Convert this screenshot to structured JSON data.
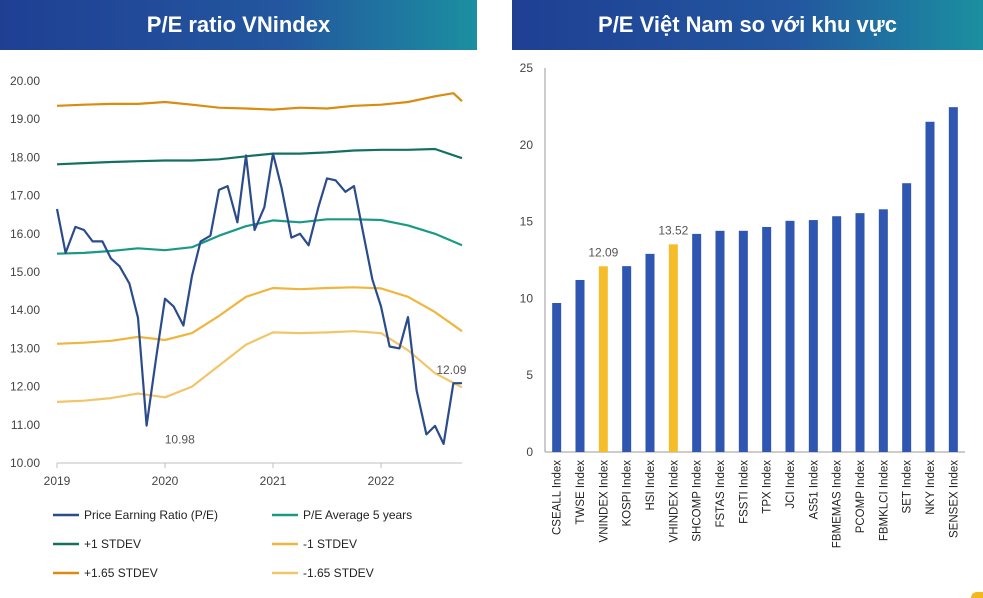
{
  "titles": {
    "left": "P/E ratio VNindex",
    "right": "P/E Việt Nam so với khu vực"
  },
  "chart_data": [
    {
      "type": "line",
      "title": "P/E ratio VNindex",
      "ylim": [
        10,
        20
      ],
      "yticks": [
        "10.00",
        "11.00",
        "12.00",
        "13.00",
        "14.00",
        "15.00",
        "16.00",
        "17.00",
        "18.00",
        "19.00",
        "20.00"
      ],
      "xlim": [
        2019,
        2022.75
      ],
      "xticks": [
        "2019",
        "2020",
        "2021",
        "2022"
      ],
      "grid": false,
      "legend_position": "bottom",
      "series": [
        {
          "name": "Price Earning Ratio (P/E)",
          "color": "#2b4c8c",
          "x": [
            2019.0,
            2019.08,
            2019.17,
            2019.25,
            2019.33,
            2019.42,
            2019.5,
            2019.58,
            2019.67,
            2019.75,
            2019.83,
            2019.92,
            2020.0,
            2020.08,
            2020.17,
            2020.25,
            2020.33,
            2020.42,
            2020.5,
            2020.58,
            2020.67,
            2020.75,
            2020.83,
            2020.92,
            2021.0,
            2021.08,
            2021.17,
            2021.25,
            2021.33,
            2021.42,
            2021.5,
            2021.58,
            2021.67,
            2021.75,
            2021.83,
            2021.92,
            2022.0,
            2022.08,
            2022.17,
            2022.25,
            2022.33,
            2022.42,
            2022.5,
            2022.58,
            2022.67,
            2022.75
          ],
          "y": [
            16.65,
            15.5,
            16.18,
            16.1,
            15.8,
            15.8,
            15.35,
            15.15,
            14.7,
            13.8,
            10.98,
            12.8,
            14.3,
            14.1,
            13.6,
            14.9,
            15.8,
            15.95,
            17.15,
            17.25,
            16.3,
            18.05,
            16.1,
            16.7,
            18.1,
            17.2,
            15.9,
            16.0,
            15.7,
            16.7,
            17.45,
            17.4,
            17.1,
            17.25,
            16.1,
            14.8,
            14.1,
            13.05,
            13.0,
            13.82,
            11.9,
            10.75,
            10.97,
            10.5,
            12.09,
            12.09
          ]
        },
        {
          "name": "P/E Average 5 years",
          "color": "#1a9a86",
          "x": [
            2019.0,
            2019.25,
            2019.5,
            2019.75,
            2020.0,
            2020.25,
            2020.5,
            2020.75,
            2021.0,
            2021.25,
            2021.5,
            2021.75,
            2022.0,
            2022.25,
            2022.5,
            2022.75
          ],
          "y": [
            15.48,
            15.5,
            15.55,
            15.62,
            15.57,
            15.65,
            15.95,
            16.2,
            16.35,
            16.3,
            16.38,
            16.38,
            16.36,
            16.22,
            16.0,
            15.7
          ]
        },
        {
          "name": "+1 STDEV",
          "color": "#157064",
          "x": [
            2019.0,
            2019.25,
            2019.5,
            2019.75,
            2020.0,
            2020.25,
            2020.5,
            2020.75,
            2021.0,
            2021.25,
            2021.5,
            2021.75,
            2022.0,
            2022.25,
            2022.5,
            2022.75
          ],
          "y": [
            17.82,
            17.85,
            17.88,
            17.9,
            17.92,
            17.92,
            17.95,
            18.03,
            18.1,
            18.1,
            18.13,
            18.18,
            18.2,
            18.2,
            18.22,
            17.98
          ]
        },
        {
          "name": "-1 STDEV",
          "color": "#f0b53c",
          "x": [
            2019.0,
            2019.25,
            2019.5,
            2019.75,
            2020.0,
            2020.25,
            2020.5,
            2020.75,
            2021.0,
            2021.25,
            2021.5,
            2021.75,
            2022.0,
            2022.25,
            2022.5,
            2022.75
          ],
          "y": [
            13.12,
            13.15,
            13.2,
            13.3,
            13.22,
            13.4,
            13.85,
            14.35,
            14.58,
            14.55,
            14.58,
            14.6,
            14.57,
            14.35,
            13.95,
            13.45
          ]
        },
        {
          "name": "+1.65 STDEV",
          "color": "#d98c10",
          "x": [
            2019.0,
            2019.25,
            2019.5,
            2019.75,
            2020.0,
            2020.25,
            2020.5,
            2020.75,
            2021.0,
            2021.25,
            2021.5,
            2021.75,
            2022.0,
            2022.25,
            2022.5,
            2022.67,
            2022.75
          ],
          "y": [
            19.35,
            19.38,
            19.4,
            19.4,
            19.45,
            19.38,
            19.3,
            19.28,
            19.25,
            19.3,
            19.28,
            19.35,
            19.38,
            19.45,
            19.6,
            19.68,
            19.47
          ]
        },
        {
          "name": "-1.65 STDEV",
          "color": "#f1c66b",
          "x": [
            2019.0,
            2019.25,
            2019.5,
            2019.75,
            2020.0,
            2020.25,
            2020.5,
            2020.75,
            2021.0,
            2021.25,
            2021.5,
            2021.75,
            2022.0,
            2022.25,
            2022.5,
            2022.75
          ],
          "y": [
            11.6,
            11.63,
            11.7,
            11.82,
            11.72,
            12.0,
            12.55,
            13.1,
            13.42,
            13.4,
            13.42,
            13.45,
            13.4,
            12.95,
            12.35,
            11.98
          ]
        }
      ],
      "annotations": [
        {
          "text": "10.98",
          "x": 2019.97,
          "y": 10.98
        },
        {
          "text": "12.09",
          "x": 2022.67,
          "y": 12.09
        }
      ]
    },
    {
      "type": "bar",
      "title": "P/E Việt Nam so với khu vực",
      "ylim": [
        0,
        25
      ],
      "yticks": [
        "0",
        "5",
        "10",
        "15",
        "20",
        "25"
      ],
      "grid": false,
      "categories": [
        "CSEALL Index",
        "TWSE Index",
        "VNINDEX Index",
        "KOSPI Index",
        "HSI Index",
        "VHINDEX Index",
        "SHCOMP Index",
        "FSTAS Index",
        "FSSTI Index",
        "TPX Index",
        "JCI Index",
        "AS51 Index",
        "FBMEMAS Index",
        "PCOMP Index",
        "FBMKLCI Index",
        "SET Index",
        "NKY Index",
        "SENSEX Index"
      ],
      "values": [
        9.7,
        11.2,
        12.09,
        12.1,
        12.9,
        13.52,
        14.2,
        14.4,
        14.4,
        14.65,
        15.05,
        15.1,
        15.35,
        15.55,
        15.8,
        17.5,
        21.5,
        22.45
      ],
      "colors": [
        "#2f56b0",
        "#2f56b0",
        "#f6bd2a",
        "#2f56b0",
        "#2f56b0",
        "#f6bd2a",
        "#2f56b0",
        "#2f56b0",
        "#2f56b0",
        "#2f56b0",
        "#2f56b0",
        "#2f56b0",
        "#2f56b0",
        "#2f56b0",
        "#2f56b0",
        "#2f56b0",
        "#2f56b0",
        "#2f56b0"
      ],
      "data_labels": [
        null,
        null,
        "12.09",
        null,
        null,
        "13.52",
        null,
        null,
        null,
        null,
        null,
        null,
        null,
        null,
        null,
        null,
        null,
        null
      ]
    }
  ]
}
